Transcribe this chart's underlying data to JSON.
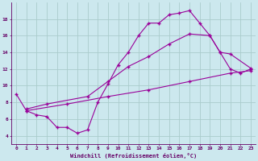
{
  "xlabel": "Windchill (Refroidissement éolien,°C)",
  "bg_color": "#cce8ee",
  "grid_color": "#aacccc",
  "line_color": "#990099",
  "line1_x": [
    0,
    1,
    2,
    3,
    4,
    5,
    6,
    7,
    8,
    9,
    10,
    11,
    12,
    13,
    14,
    15,
    16,
    17,
    18,
    19,
    20,
    21,
    22,
    23
  ],
  "line1_y": [
    9.0,
    7.0,
    6.5,
    6.3,
    5.0,
    5.0,
    4.3,
    4.7,
    8.0,
    10.2,
    12.5,
    14.0,
    16.0,
    17.5,
    17.5,
    18.5,
    18.7,
    19.0,
    17.5,
    16.0,
    14.0,
    12.0,
    11.5,
    12.0
  ],
  "line2_x": [
    1,
    3,
    7,
    9,
    11,
    13,
    15,
    17,
    19,
    20,
    21,
    23
  ],
  "line2_y": [
    7.2,
    7.8,
    8.7,
    10.5,
    12.3,
    13.5,
    15.0,
    16.2,
    16.0,
    14.0,
    13.8,
    12.1
  ],
  "line3_x": [
    1,
    5,
    9,
    13,
    17,
    21,
    23
  ],
  "line3_y": [
    7.0,
    7.8,
    8.7,
    9.5,
    10.5,
    11.5,
    11.8
  ],
  "xlim": [
    -0.5,
    23.5
  ],
  "ylim": [
    3.0,
    20.0
  ],
  "yticks": [
    4,
    6,
    8,
    10,
    12,
    14,
    16,
    18
  ],
  "xticks": [
    0,
    1,
    2,
    3,
    4,
    5,
    6,
    7,
    8,
    9,
    10,
    11,
    12,
    13,
    14,
    15,
    16,
    17,
    18,
    19,
    20,
    21,
    22,
    23
  ]
}
